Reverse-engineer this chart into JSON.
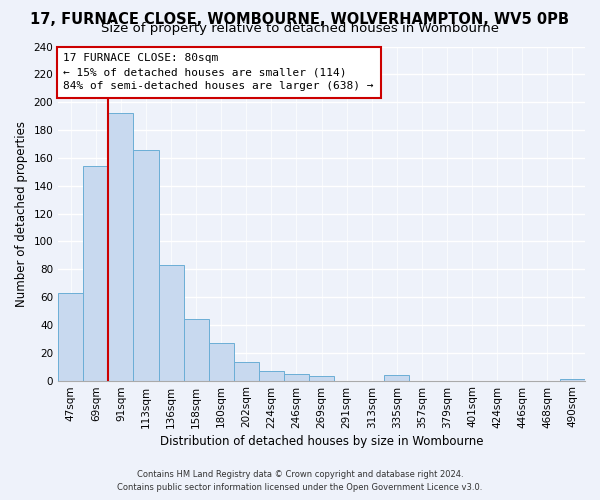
{
  "title": "17, FURNACE CLOSE, WOMBOURNE, WOLVERHAMPTON, WV5 0PB",
  "subtitle": "Size of property relative to detached houses in Wombourne",
  "xlabel": "Distribution of detached houses by size in Wombourne",
  "ylabel": "Number of detached properties",
  "bar_labels": [
    "47sqm",
    "69sqm",
    "91sqm",
    "113sqm",
    "136sqm",
    "158sqm",
    "180sqm",
    "202sqm",
    "224sqm",
    "246sqm",
    "269sqm",
    "291sqm",
    "313sqm",
    "335sqm",
    "357sqm",
    "379sqm",
    "401sqm",
    "424sqm",
    "446sqm",
    "468sqm",
    "490sqm"
  ],
  "bar_values": [
    63,
    154,
    192,
    166,
    83,
    44,
    27,
    13,
    7,
    5,
    3,
    0,
    0,
    4,
    0,
    0,
    0,
    0,
    0,
    0,
    1
  ],
  "bar_color": "#c8d9ef",
  "bar_edge_color": "#6baed6",
  "vline_color": "#cc0000",
  "annotation_title": "17 FURNACE CLOSE: 80sqm",
  "annotation_line1": "← 15% of detached houses are smaller (114)",
  "annotation_line2": "84% of semi-detached houses are larger (638) →",
  "annotation_box_facecolor": "#ffffff",
  "annotation_box_edgecolor": "#cc0000",
  "ylim": [
    0,
    240
  ],
  "yticks": [
    0,
    20,
    40,
    60,
    80,
    100,
    120,
    140,
    160,
    180,
    200,
    220,
    240
  ],
  "footnote1": "Contains HM Land Registry data © Crown copyright and database right 2024.",
  "footnote2": "Contains public sector information licensed under the Open Government Licence v3.0.",
  "background_color": "#eef2fa",
  "plot_background": "#eef2fa",
  "grid_color": "#ffffff",
  "title_fontsize": 10.5,
  "subtitle_fontsize": 9.5,
  "xlabel_fontsize": 8.5,
  "ylabel_fontsize": 8.5,
  "tick_fontsize": 7.5,
  "annotation_fontsize": 8,
  "footnote_fontsize": 6
}
